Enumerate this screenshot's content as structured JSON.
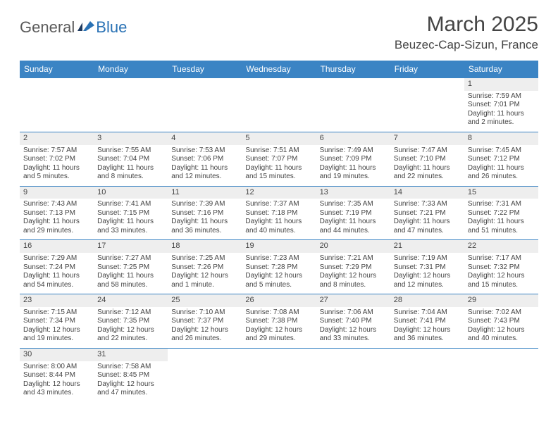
{
  "logo": {
    "general": "General",
    "blue": "Blue"
  },
  "title": "March 2025",
  "location": "Beuzec-Cap-Sizun, France",
  "colors": {
    "header_bg": "#3b84c4",
    "header_text": "#ffffff",
    "daynum_bg": "#eeeeee",
    "border": "#3b84c4",
    "text": "#444444",
    "logo_gray": "#5a5a5a",
    "logo_blue": "#2a72b5"
  },
  "weekdays": [
    "Sunday",
    "Monday",
    "Tuesday",
    "Wednesday",
    "Thursday",
    "Friday",
    "Saturday"
  ],
  "weeks": [
    [
      null,
      null,
      null,
      null,
      null,
      null,
      {
        "n": "1",
        "sunrise": "Sunrise: 7:59 AM",
        "sunset": "Sunset: 7:01 PM",
        "daylight": "Daylight: 11 hours and 2 minutes."
      }
    ],
    [
      {
        "n": "2",
        "sunrise": "Sunrise: 7:57 AM",
        "sunset": "Sunset: 7:02 PM",
        "daylight": "Daylight: 11 hours and 5 minutes."
      },
      {
        "n": "3",
        "sunrise": "Sunrise: 7:55 AM",
        "sunset": "Sunset: 7:04 PM",
        "daylight": "Daylight: 11 hours and 8 minutes."
      },
      {
        "n": "4",
        "sunrise": "Sunrise: 7:53 AM",
        "sunset": "Sunset: 7:06 PM",
        "daylight": "Daylight: 11 hours and 12 minutes."
      },
      {
        "n": "5",
        "sunrise": "Sunrise: 7:51 AM",
        "sunset": "Sunset: 7:07 PM",
        "daylight": "Daylight: 11 hours and 15 minutes."
      },
      {
        "n": "6",
        "sunrise": "Sunrise: 7:49 AM",
        "sunset": "Sunset: 7:09 PM",
        "daylight": "Daylight: 11 hours and 19 minutes."
      },
      {
        "n": "7",
        "sunrise": "Sunrise: 7:47 AM",
        "sunset": "Sunset: 7:10 PM",
        "daylight": "Daylight: 11 hours and 22 minutes."
      },
      {
        "n": "8",
        "sunrise": "Sunrise: 7:45 AM",
        "sunset": "Sunset: 7:12 PM",
        "daylight": "Daylight: 11 hours and 26 minutes."
      }
    ],
    [
      {
        "n": "9",
        "sunrise": "Sunrise: 7:43 AM",
        "sunset": "Sunset: 7:13 PM",
        "daylight": "Daylight: 11 hours and 29 minutes."
      },
      {
        "n": "10",
        "sunrise": "Sunrise: 7:41 AM",
        "sunset": "Sunset: 7:15 PM",
        "daylight": "Daylight: 11 hours and 33 minutes."
      },
      {
        "n": "11",
        "sunrise": "Sunrise: 7:39 AM",
        "sunset": "Sunset: 7:16 PM",
        "daylight": "Daylight: 11 hours and 36 minutes."
      },
      {
        "n": "12",
        "sunrise": "Sunrise: 7:37 AM",
        "sunset": "Sunset: 7:18 PM",
        "daylight": "Daylight: 11 hours and 40 minutes."
      },
      {
        "n": "13",
        "sunrise": "Sunrise: 7:35 AM",
        "sunset": "Sunset: 7:19 PM",
        "daylight": "Daylight: 11 hours and 44 minutes."
      },
      {
        "n": "14",
        "sunrise": "Sunrise: 7:33 AM",
        "sunset": "Sunset: 7:21 PM",
        "daylight": "Daylight: 11 hours and 47 minutes."
      },
      {
        "n": "15",
        "sunrise": "Sunrise: 7:31 AM",
        "sunset": "Sunset: 7:22 PM",
        "daylight": "Daylight: 11 hours and 51 minutes."
      }
    ],
    [
      {
        "n": "16",
        "sunrise": "Sunrise: 7:29 AM",
        "sunset": "Sunset: 7:24 PM",
        "daylight": "Daylight: 11 hours and 54 minutes."
      },
      {
        "n": "17",
        "sunrise": "Sunrise: 7:27 AM",
        "sunset": "Sunset: 7:25 PM",
        "daylight": "Daylight: 11 hours and 58 minutes."
      },
      {
        "n": "18",
        "sunrise": "Sunrise: 7:25 AM",
        "sunset": "Sunset: 7:26 PM",
        "daylight": "Daylight: 12 hours and 1 minute."
      },
      {
        "n": "19",
        "sunrise": "Sunrise: 7:23 AM",
        "sunset": "Sunset: 7:28 PM",
        "daylight": "Daylight: 12 hours and 5 minutes."
      },
      {
        "n": "20",
        "sunrise": "Sunrise: 7:21 AM",
        "sunset": "Sunset: 7:29 PM",
        "daylight": "Daylight: 12 hours and 8 minutes."
      },
      {
        "n": "21",
        "sunrise": "Sunrise: 7:19 AM",
        "sunset": "Sunset: 7:31 PM",
        "daylight": "Daylight: 12 hours and 12 minutes."
      },
      {
        "n": "22",
        "sunrise": "Sunrise: 7:17 AM",
        "sunset": "Sunset: 7:32 PM",
        "daylight": "Daylight: 12 hours and 15 minutes."
      }
    ],
    [
      {
        "n": "23",
        "sunrise": "Sunrise: 7:15 AM",
        "sunset": "Sunset: 7:34 PM",
        "daylight": "Daylight: 12 hours and 19 minutes."
      },
      {
        "n": "24",
        "sunrise": "Sunrise: 7:12 AM",
        "sunset": "Sunset: 7:35 PM",
        "daylight": "Daylight: 12 hours and 22 minutes."
      },
      {
        "n": "25",
        "sunrise": "Sunrise: 7:10 AM",
        "sunset": "Sunset: 7:37 PM",
        "daylight": "Daylight: 12 hours and 26 minutes."
      },
      {
        "n": "26",
        "sunrise": "Sunrise: 7:08 AM",
        "sunset": "Sunset: 7:38 PM",
        "daylight": "Daylight: 12 hours and 29 minutes."
      },
      {
        "n": "27",
        "sunrise": "Sunrise: 7:06 AM",
        "sunset": "Sunset: 7:40 PM",
        "daylight": "Daylight: 12 hours and 33 minutes."
      },
      {
        "n": "28",
        "sunrise": "Sunrise: 7:04 AM",
        "sunset": "Sunset: 7:41 PM",
        "daylight": "Daylight: 12 hours and 36 minutes."
      },
      {
        "n": "29",
        "sunrise": "Sunrise: 7:02 AM",
        "sunset": "Sunset: 7:43 PM",
        "daylight": "Daylight: 12 hours and 40 minutes."
      }
    ],
    [
      {
        "n": "30",
        "sunrise": "Sunrise: 8:00 AM",
        "sunset": "Sunset: 8:44 PM",
        "daylight": "Daylight: 12 hours and 43 minutes."
      },
      {
        "n": "31",
        "sunrise": "Sunrise: 7:58 AM",
        "sunset": "Sunset: 8:45 PM",
        "daylight": "Daylight: 12 hours and 47 minutes."
      },
      null,
      null,
      null,
      null,
      null
    ]
  ]
}
